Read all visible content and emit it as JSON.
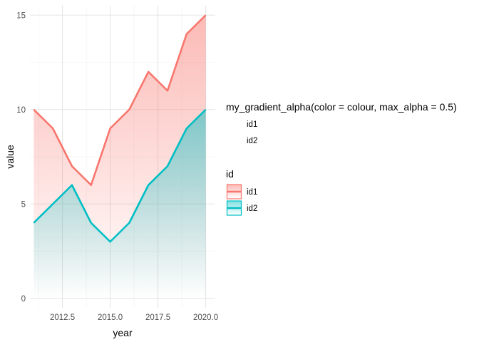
{
  "chart_data": {
    "type": "area",
    "title": "",
    "xlabel": "year",
    "ylabel": "value",
    "x": [
      2011,
      2012,
      2013,
      2014,
      2015,
      2016,
      2017,
      2018,
      2019,
      2020
    ],
    "xlim": [
      2010.8,
      2020.5
    ],
    "ylim": [
      -0.5,
      15.5
    ],
    "x_ticks": [
      2012.5,
      2015.0,
      2017.5,
      2020.0
    ],
    "x_tick_labels": [
      "2012.5",
      "2015.0",
      "2017.5",
      "2020.0"
    ],
    "y_ticks": [
      0,
      5,
      10,
      15
    ],
    "y_tick_labels": [
      "0",
      "5",
      "10",
      "15"
    ],
    "grid": true,
    "series": [
      {
        "name": "id1",
        "color": "#F8766D",
        "values": [
          10,
          9,
          7,
          6,
          9,
          10,
          12,
          11,
          14,
          15
        ]
      },
      {
        "name": "id2",
        "color": "#00BFC4",
        "values": [
          4,
          5,
          6,
          4,
          3,
          4,
          6,
          7,
          9,
          10
        ]
      }
    ],
    "fill": "gradient from series color at max_alpha 0.5 (top) to transparent at y=0",
    "legends": [
      {
        "title": "my_gradient_alpha(color = colour, max_alpha = 0.5)",
        "entries": [
          "id1",
          "id2"
        ]
      },
      {
        "title": "id",
        "entries": [
          "id1",
          "id2"
        ]
      }
    ],
    "legend_position": "right"
  }
}
